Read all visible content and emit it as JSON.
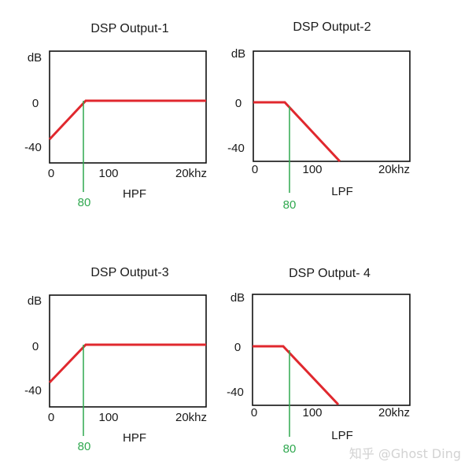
{
  "colors": {
    "frame": "#111111",
    "response": "#e0282e",
    "cutoff": "#2fa84f",
    "watermark": "#d2d2d2"
  },
  "panels": [
    {
      "title": "DSP Output-1",
      "filter_label": "HPF",
      "type": "highpass",
      "y_unit": "dB",
      "y_ticks": [
        "0",
        "-40"
      ],
      "x_ticks": [
        "0",
        "100",
        "20khz"
      ],
      "cutoff": "80"
    },
    {
      "title": "DSP Output-2",
      "filter_label": "LPF",
      "type": "lowpass",
      "y_unit": "dB",
      "y_ticks": [
        "0",
        "-40"
      ],
      "x_ticks": [
        "0",
        "100",
        "20khz"
      ],
      "cutoff": "80"
    },
    {
      "title": "DSP Output-3",
      "filter_label": "HPF",
      "type": "highpass",
      "y_unit": "dB",
      "y_ticks": [
        "0",
        "-40"
      ],
      "x_ticks": [
        "0",
        "100",
        "20khz"
      ],
      "cutoff": "80"
    },
    {
      "title": "DSP Output- 4",
      "filter_label": "LPF",
      "type": "lowpass",
      "y_unit": "dB",
      "y_ticks": [
        "0",
        "-40"
      ],
      "x_ticks": [
        "0",
        "100",
        "20khz"
      ],
      "cutoff": "80"
    }
  ],
  "watermark": "知乎 @Ghost Ding"
}
